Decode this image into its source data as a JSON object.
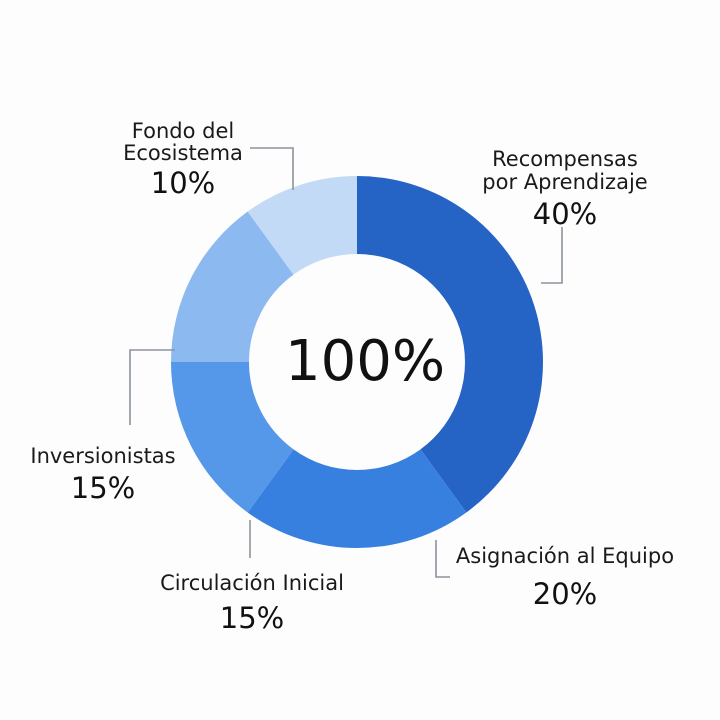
{
  "chart_data": {
    "type": "pie",
    "variant": "donut",
    "center_label": "100%",
    "legend": "none",
    "slices": [
      {
        "name_lines": [
          "Recompensas",
          "por Aprendizaje"
        ],
        "value": 40,
        "label": "40%",
        "color": "#2563c4"
      },
      {
        "name_lines": [
          "Asignación al Equipo"
        ],
        "value": 20,
        "label": "20%",
        "color": "#3780e0"
      },
      {
        "name_lines": [
          "Circulación Inicial"
        ],
        "value": 15,
        "label": "15%",
        "color": "#5597e8"
      },
      {
        "name_lines": [
          "Inversionistas"
        ],
        "value": 15,
        "label": "15%",
        "color": "#8cbaf0"
      },
      {
        "name_lines": [
          "Fondo del",
          "Ecosistema"
        ],
        "value": 10,
        "label": "10%",
        "color": "#c2daf5"
      }
    ]
  }
}
